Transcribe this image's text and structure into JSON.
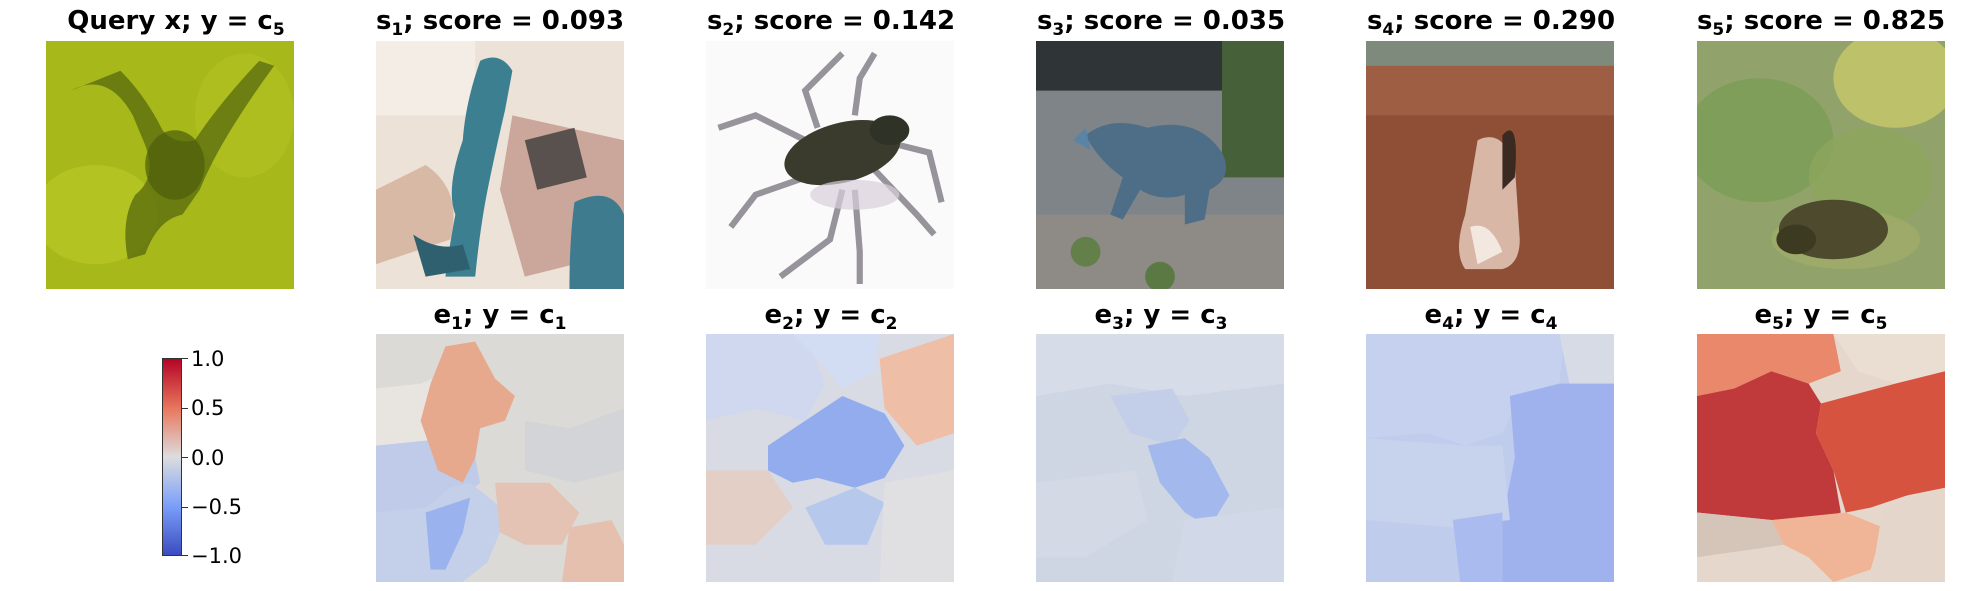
{
  "query": {
    "title_main": "Query x; y = c",
    "title_sub": "5"
  },
  "samples": [
    {
      "sym": "s",
      "idx": "1",
      "score_text": "; score = 0.093",
      "score": 0.093
    },
    {
      "sym": "s",
      "idx": "2",
      "score_text": "; score = 0.142",
      "score": 0.142
    },
    {
      "sym": "s",
      "idx": "3",
      "score_text": "; score = 0.035",
      "score": 0.035
    },
    {
      "sym": "s",
      "idx": "4",
      "score_text": "; score = 0.290",
      "score": 0.29
    },
    {
      "sym": "s",
      "idx": "5",
      "score_text": "; score = 0.825",
      "score": 0.825
    }
  ],
  "explanations": [
    {
      "sym": "e",
      "idx": "1",
      "label_mid": "; y = c",
      "label_sub": "1"
    },
    {
      "sym": "e",
      "idx": "2",
      "label_mid": "; y = c",
      "label_sub": "2"
    },
    {
      "sym": "e",
      "idx": "3",
      "label_mid": "; y = c",
      "label_sub": "3"
    },
    {
      "sym": "e",
      "idx": "4",
      "label_mid": "; y = c",
      "label_sub": "4"
    },
    {
      "sym": "e",
      "idx": "5",
      "label_mid": "; y = c",
      "label_sub": "5"
    }
  ],
  "colorbar": {
    "ticks": [
      "1.0",
      "0.5",
      "0.0",
      "−0.5",
      "−1.0"
    ],
    "min": -1.0,
    "max": 1.0,
    "colormap": [
      "#b40426",
      "#e8765c",
      "#dddddd",
      "#7b9ff9",
      "#3b4cc0"
    ]
  }
}
